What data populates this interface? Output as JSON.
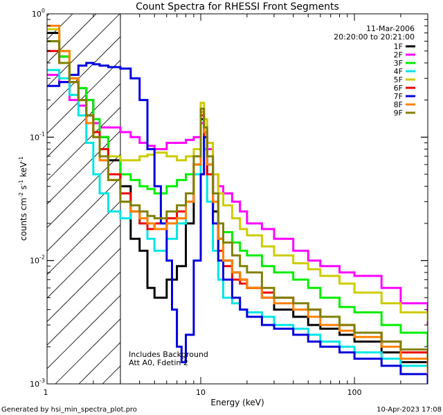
{
  "chart_data": {
    "type": "line",
    "title": "Count Spectra for RHESSI Front Segments",
    "xlabel": "Energy (keV)",
    "ylabel_main": "counts cm",
    "ylabel_sup1": "-2",
    "ylabel_mid1": " s",
    "ylabel_sup2": "-1",
    "ylabel_mid2": " keV",
    "ylabel_sup3": "-1",
    "x_scale": "log",
    "y_scale": "log",
    "xlim": [
      1,
      300
    ],
    "ylim": [
      0.001,
      1
    ],
    "x_ticks": [
      {
        "value": 10,
        "label": "10"
      },
      {
        "value": 100,
        "label": "100"
      }
    ],
    "x_edge_label": "1",
    "y_ticks": [
      {
        "value": 1,
        "base": "10",
        "exp": "0"
      },
      {
        "value": 0.1,
        "base": "10",
        "exp": "-1"
      },
      {
        "value": 0.01,
        "base": "10",
        "exp": "-2"
      },
      {
        "value": 0.001,
        "base": "10",
        "exp": "-3"
      }
    ],
    "date": "11-Mar-2006",
    "time_range": "20:20:00 to 20:21:00",
    "annotation_line1": "Includes Background",
    "annotation_line2": "Att A0, Fdetin 2",
    "hatched_upper_energy": 3,
    "series": [
      {
        "name": "1F",
        "color": "#000000",
        "x": [
          1,
          1.2,
          1.4,
          1.6,
          1.8,
          2.0,
          2.2,
          2.5,
          3,
          3.5,
          4,
          4.5,
          5,
          6,
          7,
          8,
          9,
          10,
          10.5,
          11,
          12,
          13,
          14,
          16,
          18,
          20,
          25,
          30,
          40,
          50,
          60,
          80,
          100,
          150,
          200,
          300
        ],
        "y": [
          0.7,
          0.45,
          0.3,
          0.25,
          0.2,
          0.13,
          0.1,
          0.065,
          0.04,
          0.015,
          0.012,
          0.006,
          0.005,
          0.007,
          0.009,
          0.02,
          0.05,
          0.14,
          0.1,
          0.05,
          0.025,
          0.015,
          0.01,
          0.008,
          0.007,
          0.006,
          0.005,
          0.004,
          0.0035,
          0.003,
          0.0028,
          0.0025,
          0.0022,
          0.0018,
          0.0015,
          0.0012
        ]
      },
      {
        "name": "2F",
        "color": "#ff00ff",
        "x": [
          1,
          1.2,
          1.4,
          1.6,
          1.8,
          2.0,
          2.2,
          2.5,
          3,
          3.5,
          4,
          4.5,
          5,
          6,
          7,
          8,
          9,
          10,
          10.5,
          11,
          12,
          13,
          14,
          16,
          18,
          20,
          25,
          30,
          40,
          50,
          60,
          80,
          100,
          150,
          200,
          300
        ],
        "y": [
          0.32,
          0.28,
          0.2,
          0.18,
          0.15,
          0.13,
          0.12,
          0.12,
          0.11,
          0.1,
          0.09,
          0.085,
          0.08,
          0.09,
          0.09,
          0.095,
          0.1,
          0.13,
          0.11,
          0.08,
          0.05,
          0.04,
          0.035,
          0.03,
          0.025,
          0.02,
          0.018,
          0.015,
          0.012,
          0.01,
          0.009,
          0.008,
          0.0075,
          0.006,
          0.0045,
          0.003
        ]
      },
      {
        "name": "3F",
        "color": "#00ee00",
        "x": [
          1,
          1.2,
          1.4,
          1.6,
          1.8,
          2.0,
          2.2,
          2.5,
          3,
          3.5,
          4,
          4.5,
          5,
          6,
          7,
          8,
          9,
          10,
          10.5,
          11,
          12,
          13,
          14,
          16,
          18,
          20,
          25,
          30,
          40,
          50,
          60,
          80,
          100,
          150,
          200,
          300
        ],
        "y": [
          0.6,
          0.45,
          0.3,
          0.25,
          0.2,
          0.14,
          0.1,
          0.07,
          0.05,
          0.045,
          0.04,
          0.038,
          0.035,
          0.04,
          0.045,
          0.05,
          0.06,
          0.15,
          0.1,
          0.06,
          0.03,
          0.02,
          0.017,
          0.014,
          0.012,
          0.011,
          0.009,
          0.008,
          0.007,
          0.006,
          0.005,
          0.0042,
          0.0038,
          0.003,
          0.0026,
          0.002
        ]
      },
      {
        "name": "4F",
        "color": "#00e5e5",
        "x": [
          1,
          1.2,
          1.4,
          1.6,
          1.8,
          2.0,
          2.2,
          2.5,
          3,
          3.5,
          4,
          4.5,
          5,
          6,
          7,
          8,
          9,
          10,
          10.5,
          11,
          12,
          13,
          14,
          16,
          18,
          20,
          25,
          30,
          40,
          50,
          60,
          80,
          100,
          150,
          200,
          300
        ],
        "y": [
          0.35,
          0.3,
          0.22,
          0.15,
          0.09,
          0.05,
          0.035,
          0.025,
          0.022,
          0.025,
          0.02,
          0.015,
          0.012,
          0.015,
          0.02,
          0.03,
          0.05,
          0.15,
          0.08,
          0.03,
          0.012,
          0.007,
          0.005,
          0.0045,
          0.004,
          0.0038,
          0.0035,
          0.003,
          0.0028,
          0.0025,
          0.0022,
          0.002,
          0.0018,
          0.0016,
          0.0014,
          0.0012
        ]
      },
      {
        "name": "5F",
        "color": "#cccc00",
        "x": [
          1,
          1.2,
          1.4,
          1.6,
          1.8,
          2.0,
          2.2,
          2.5,
          3,
          3.5,
          4,
          4.5,
          5,
          6,
          7,
          8,
          9,
          10,
          10.5,
          11,
          12,
          13,
          14,
          16,
          18,
          20,
          25,
          30,
          40,
          50,
          60,
          80,
          100,
          150,
          200,
          300
        ],
        "y": [
          0.75,
          0.5,
          0.3,
          0.2,
          0.15,
          0.1,
          0.08,
          0.07,
          0.065,
          0.065,
          0.07,
          0.072,
          0.075,
          0.07,
          0.065,
          0.07,
          0.08,
          0.19,
          0.14,
          0.09,
          0.05,
          0.035,
          0.028,
          0.022,
          0.018,
          0.016,
          0.013,
          0.011,
          0.0095,
          0.0085,
          0.0075,
          0.0065,
          0.0055,
          0.0045,
          0.0038,
          0.0032
        ]
      },
      {
        "name": "6F",
        "color": "#ee0000",
        "x": [
          1,
          1.2,
          1.4,
          1.6,
          1.8,
          2.0,
          2.2,
          2.5,
          3,
          3.5,
          4,
          4.5,
          5,
          6,
          7,
          8,
          9,
          10,
          10.5,
          11,
          12,
          13,
          14,
          16,
          18,
          20,
          25,
          30,
          40,
          50,
          60,
          80,
          100,
          150,
          200,
          300
        ],
        "y": [
          0.5,
          0.4,
          0.28,
          0.2,
          0.15,
          0.11,
          0.08,
          0.05,
          0.035,
          0.025,
          0.02,
          0.018,
          0.02,
          0.022,
          0.025,
          0.03,
          0.06,
          0.15,
          0.1,
          0.05,
          0.02,
          0.012,
          0.009,
          0.007,
          0.0065,
          0.006,
          0.0055,
          0.005,
          0.0045,
          0.004,
          0.0035,
          0.003,
          0.0026,
          0.0022,
          0.0018,
          0.0015
        ]
      },
      {
        "name": "7F",
        "color": "#0000dd",
        "x": [
          1,
          1.2,
          1.4,
          1.6,
          1.8,
          2.0,
          2.2,
          2.5,
          3,
          3.5,
          4,
          4.5,
          5,
          5.5,
          6,
          6.5,
          7,
          7.5,
          8,
          9,
          10,
          10.5,
          11,
          12,
          13,
          14,
          16,
          18,
          20,
          25,
          30,
          40,
          50,
          60,
          80,
          100,
          150,
          200,
          300
        ],
        "y": [
          0.26,
          0.28,
          0.32,
          0.38,
          0.4,
          0.39,
          0.38,
          0.37,
          0.36,
          0.3,
          0.2,
          0.08,
          0.04,
          0.02,
          0.01,
          0.004,
          0.002,
          0.0015,
          0.0025,
          0.01,
          0.05,
          0.1,
          0.06,
          0.02,
          0.01,
          0.007,
          0.005,
          0.004,
          0.0035,
          0.003,
          0.0028,
          0.0025,
          0.0022,
          0.002,
          0.0018,
          0.0016,
          0.0014,
          0.0012,
          0.001
        ]
      },
      {
        "name": "8F",
        "color": "#ff8000",
        "x": [
          1,
          1.2,
          1.4,
          1.6,
          1.8,
          2.0,
          2.2,
          2.5,
          3,
          3.5,
          4,
          4.5,
          5,
          6,
          7,
          8,
          9,
          10,
          10.5,
          11,
          12,
          13,
          14,
          16,
          18,
          20,
          25,
          30,
          40,
          50,
          60,
          80,
          100,
          150,
          200,
          300
        ],
        "y": [
          0.8,
          0.5,
          0.3,
          0.2,
          0.13,
          0.1,
          0.065,
          0.045,
          0.03,
          0.025,
          0.022,
          0.02,
          0.018,
          0.02,
          0.022,
          0.03,
          0.06,
          0.16,
          0.11,
          0.06,
          0.03,
          0.015,
          0.01,
          0.008,
          0.007,
          0.006,
          0.005,
          0.0045,
          0.004,
          0.0035,
          0.003,
          0.0027,
          0.0024,
          0.002,
          0.0016,
          0.0012
        ]
      },
      {
        "name": "9F",
        "color": "#808000",
        "x": [
          1,
          1.2,
          1.4,
          1.6,
          1.8,
          2.0,
          2.2,
          2.5,
          3,
          3.5,
          4,
          4.5,
          5,
          6,
          7,
          8,
          9,
          10,
          10.5,
          11,
          12,
          13,
          14,
          16,
          18,
          20,
          25,
          30,
          40,
          50,
          60,
          80,
          100,
          150,
          200,
          300
        ],
        "y": [
          0.6,
          0.4,
          0.28,
          0.2,
          0.15,
          0.1,
          0.07,
          0.045,
          0.03,
          0.028,
          0.025,
          0.023,
          0.022,
          0.025,
          0.028,
          0.035,
          0.07,
          0.17,
          0.12,
          0.07,
          0.035,
          0.02,
          0.014,
          0.011,
          0.009,
          0.008,
          0.006,
          0.005,
          0.0045,
          0.004,
          0.0035,
          0.003,
          0.0026,
          0.0022,
          0.0019,
          0.0016
        ]
      }
    ]
  },
  "footer": {
    "generated_by": "Generated by hsi_min_spectra_plot.pro",
    "timestamp": "10-Apr-2023 17:08"
  }
}
